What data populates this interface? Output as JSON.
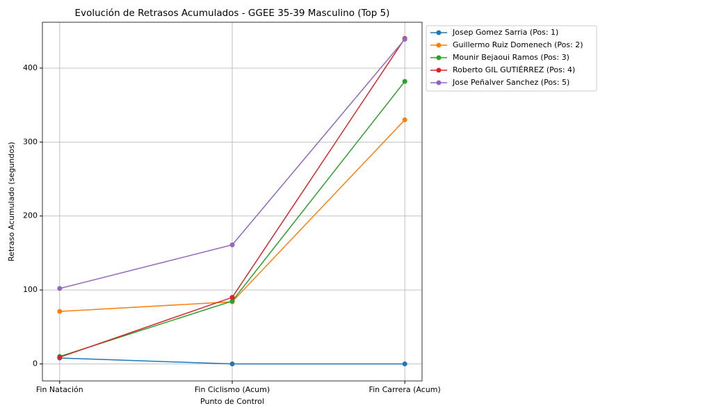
{
  "chart_data": {
    "type": "line",
    "title": "Evolución de Retrasos Acumulados - GGEE 35-39 Masculino (Top 5)",
    "x_label": "Punto de Control",
    "y_label": "Retraso Acumulado (segundos)",
    "categories": [
      "Fin Natación",
      "Fin Ciclismo (Acum)",
      "Fin Carrera (Acum)"
    ],
    "series": [
      {
        "name": "Josep Gomez Sarria (Pos: 1)",
        "color": "#1f77b4",
        "values": [
          8,
          0,
          0
        ]
      },
      {
        "name": "Guillermo Ruiz Domenech (Pos: 2)",
        "color": "#ff7f0e",
        "values": [
          71,
          84,
          330
        ]
      },
      {
        "name": "Mounir Bejaoui Ramos (Pos: 3)",
        "color": "#2ca02c",
        "values": [
          10,
          85,
          382
        ]
      },
      {
        "name": "Roberto GIL GUTIÉRREZ (Pos: 4)",
        "color": "#d62728",
        "values": [
          9,
          90,
          440
        ]
      },
      {
        "name": "Jose Peñalver Sanchez (Pos: 5)",
        "color": "#9467bd",
        "values": [
          102,
          161,
          439
        ]
      }
    ],
    "ylim": [
      -23,
      462
    ],
    "yticks": [
      0,
      100,
      200,
      300,
      400
    ],
    "grid": true,
    "legend": "outside-upper-right"
  }
}
